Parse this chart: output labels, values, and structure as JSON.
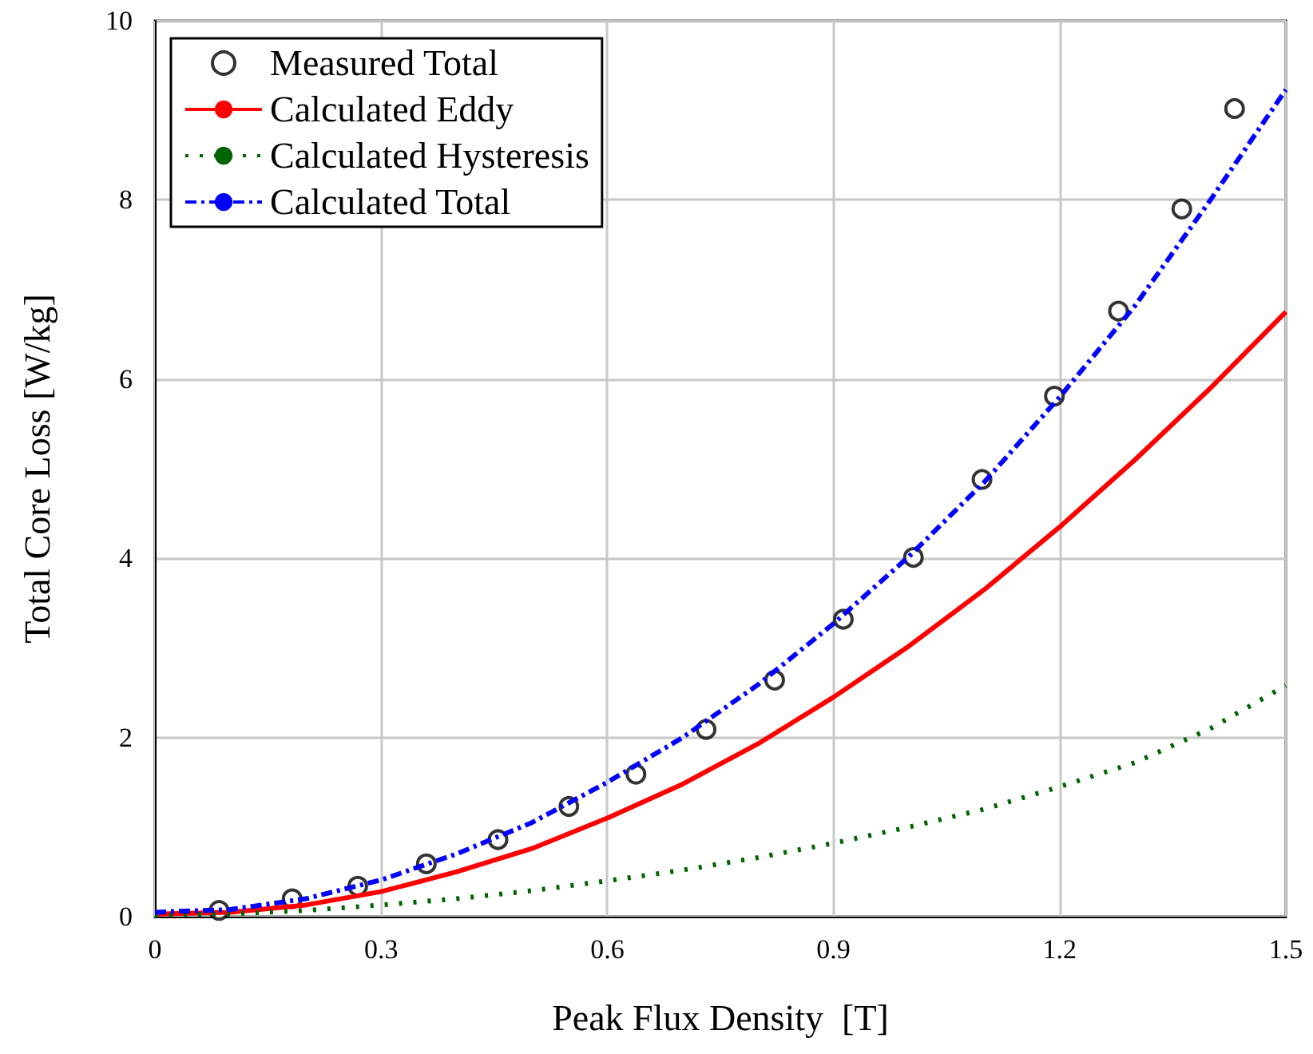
{
  "chart_data": {
    "type": "line",
    "xlabel": "Peak Flux Density  [T]",
    "ylabel": "Total Core Loss [W/kg]",
    "xlim": [
      0,
      1.5
    ],
    "xticks": [
      0,
      0.3,
      0.6,
      0.9,
      1.2,
      1.5
    ],
    "ylim": [
      0,
      10
    ],
    "yticks": [
      0,
      2,
      4,
      6,
      8,
      10
    ],
    "grid": true,
    "legend": "top left",
    "series": [
      {
        "name": "Measured Total",
        "type": "scatter",
        "marker": "circle",
        "color": "#000000",
        "x": [
          0.085,
          0.182,
          0.269,
          0.36,
          0.455,
          0.549,
          0.638,
          0.731,
          0.822,
          0.913,
          1.006,
          1.097,
          1.193,
          1.278,
          1.362,
          1.432
        ],
        "values": [
          0.07,
          0.2,
          0.34,
          0.59,
          0.86,
          1.23,
          1.59,
          2.09,
          2.64,
          3.32,
          4.01,
          4.88,
          5.81,
          6.76,
          7.9,
          9.02
        ]
      },
      {
        "name": "Calculated Eddy",
        "line_style": "solid",
        "color": "#ff0000",
        "x": [
          0,
          0.1,
          0.2,
          0.3,
          0.4,
          0.5,
          0.6,
          0.7,
          0.8,
          0.9,
          1.0,
          1.1,
          1.2,
          1.3,
          1.4,
          1.5
        ],
        "values": [
          0.03,
          0.05,
          0.13,
          0.28,
          0.5,
          0.76,
          1.1,
          1.48,
          1.93,
          2.45,
          3.02,
          3.65,
          4.35,
          5.1,
          5.9,
          6.75
        ]
      },
      {
        "name": "Calculated Hysteresis",
        "line_style": "dotted",
        "color": "#006400",
        "x": [
          0,
          0.1,
          0.2,
          0.3,
          0.4,
          0.5,
          0.6,
          0.7,
          0.8,
          0.9,
          1.0,
          1.1,
          1.2,
          1.3,
          1.4,
          1.5
        ],
        "values": [
          0.02,
          0.03,
          0.07,
          0.13,
          0.2,
          0.29,
          0.4,
          0.52,
          0.66,
          0.82,
          1.0,
          1.2,
          1.45,
          1.72,
          2.1,
          2.58
        ]
      },
      {
        "name": "Calculated Total",
        "line_style": "dashed",
        "color": "#0000ff",
        "x": [
          0,
          0.1,
          0.2,
          0.3,
          0.4,
          0.5,
          0.6,
          0.7,
          0.8,
          0.9,
          1.0,
          1.1,
          1.2,
          1.3,
          1.4,
          1.5
        ],
        "values": [
          0.05,
          0.08,
          0.2,
          0.41,
          0.7,
          1.05,
          1.5,
          2.0,
          2.59,
          3.27,
          4.02,
          4.85,
          5.8,
          6.82,
          8.0,
          9.23
        ]
      }
    ]
  }
}
